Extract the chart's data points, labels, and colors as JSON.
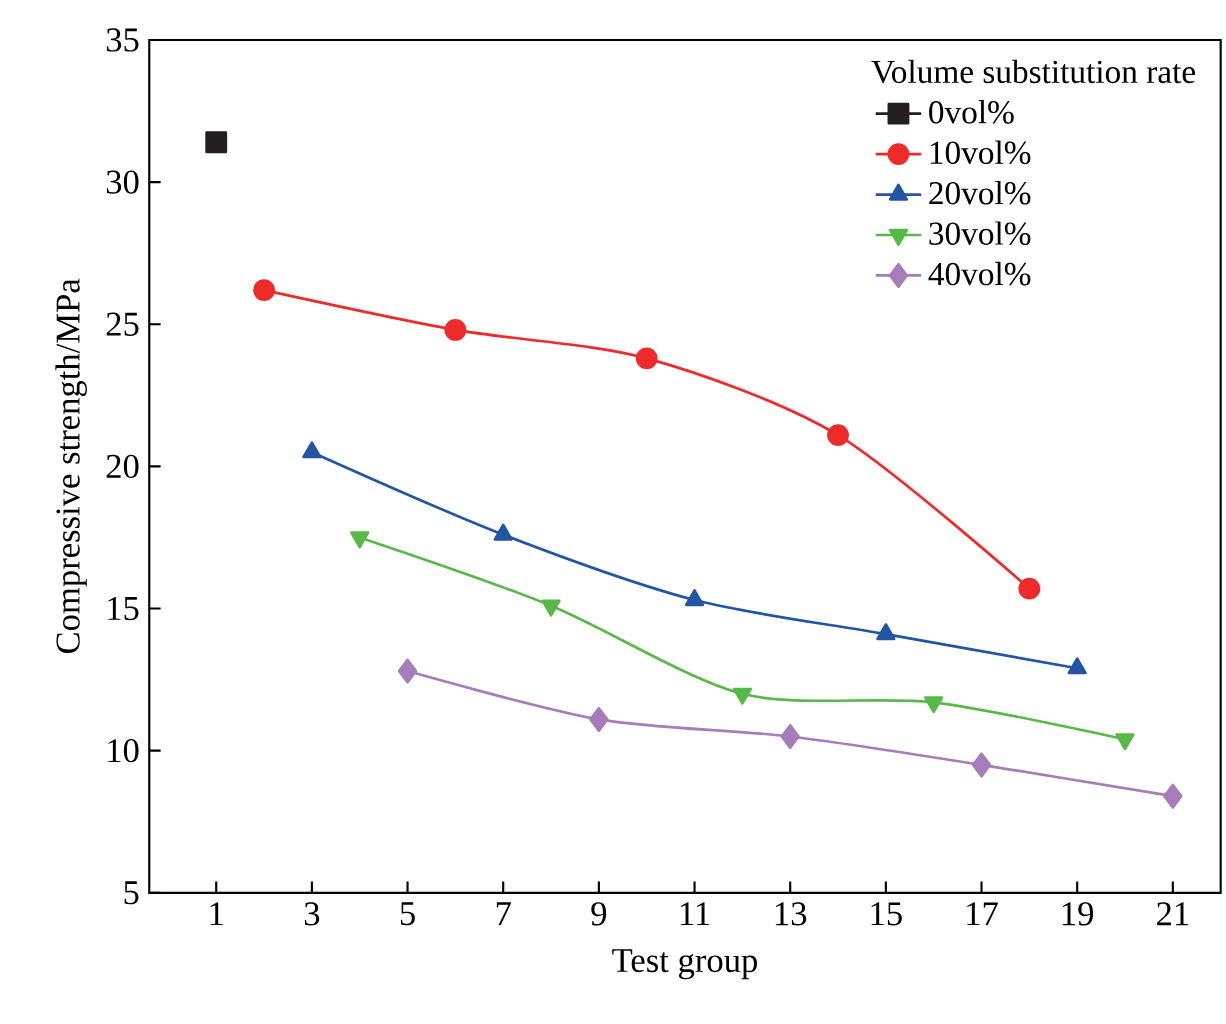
{
  "chart_data": {
    "type": "line",
    "xlabel": "Test group",
    "ylabel": "Compressive strength/MPa",
    "legend_title": "Volume substitution rate",
    "xlim": [
      -0.4,
      22
    ],
    "ylim": [
      5,
      35
    ],
    "xticks": [
      1,
      3,
      5,
      7,
      9,
      11,
      13,
      15,
      17,
      19,
      21
    ],
    "yticks": [
      5,
      10,
      15,
      20,
      25,
      30,
      35
    ],
    "grid": false,
    "legend": "top right",
    "line_style": "solid",
    "series": [
      {
        "name": "0vol%",
        "color": "#231f20",
        "marker": "square",
        "x": [
          1
        ],
        "values": [
          31.4
        ]
      },
      {
        "name": "10vol%",
        "color": "#ee2a2a",
        "marker": "circle",
        "x": [
          2,
          6,
          10,
          14,
          18
        ],
        "values": [
          26.2,
          24.8,
          23.8,
          21.1,
          15.7
        ]
      },
      {
        "name": "20vol%",
        "color": "#2355a5",
        "marker": "triangle",
        "x": [
          3,
          7,
          11,
          15,
          19
        ],
        "values": [
          20.5,
          17.6,
          15.3,
          14.1,
          12.9
        ]
      },
      {
        "name": "30vol%",
        "color": "#57b947",
        "marker": "triangle down",
        "x": [
          4,
          8,
          12,
          16,
          20
        ],
        "values": [
          17.5,
          15.1,
          12.0,
          11.7,
          10.4
        ]
      },
      {
        "name": "40vol%",
        "color": "#a57dba",
        "marker": "diamond",
        "x": [
          5,
          9,
          13,
          17,
          21
        ],
        "values": [
          12.8,
          11.1,
          10.5,
          9.5,
          8.4
        ]
      }
    ]
  }
}
